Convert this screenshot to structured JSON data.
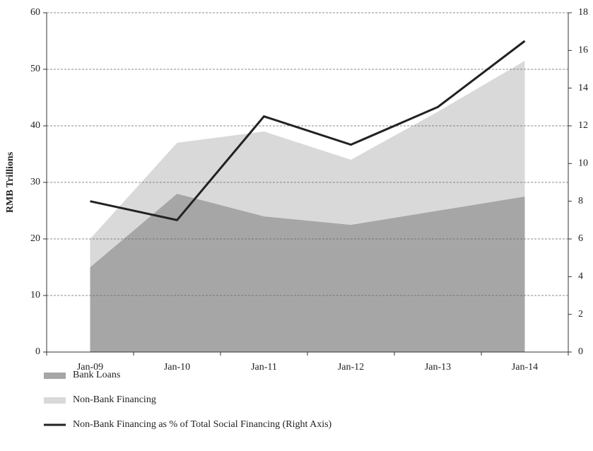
{
  "chart_data": {
    "type": "area",
    "y_label": "RMB Trillions",
    "categories": [
      "Jan-09",
      "Jan-10",
      "Jan-11",
      "Jan-12",
      "Jan-13",
      "Jan-14"
    ],
    "series": [
      {
        "name": "Bank Loans",
        "color": "#a6a6a6",
        "values": [
          15,
          28,
          24,
          22.5,
          25,
          27.5
        ]
      },
      {
        "name": "Non-Bank Financing",
        "color": "#d9d9d9",
        "values": [
          5,
          9,
          15,
          11.5,
          17.5,
          24
        ]
      },
      {
        "name": "Non-Bank Financing as % of Total Social Financing (Right Axis)",
        "color": "#222222",
        "type": "line",
        "axis": "y2",
        "values": [
          8,
          7,
          12.5,
          11,
          13,
          16.5
        ]
      }
    ],
    "ylim": [
      0,
      60
    ],
    "yticks": [
      0,
      10,
      20,
      30,
      40,
      50,
      60
    ],
    "y2lim": [
      0,
      18
    ],
    "y2ticks": [
      0,
      2,
      4,
      6,
      8,
      10,
      12,
      14,
      16,
      18
    ],
    "grid": true
  }
}
